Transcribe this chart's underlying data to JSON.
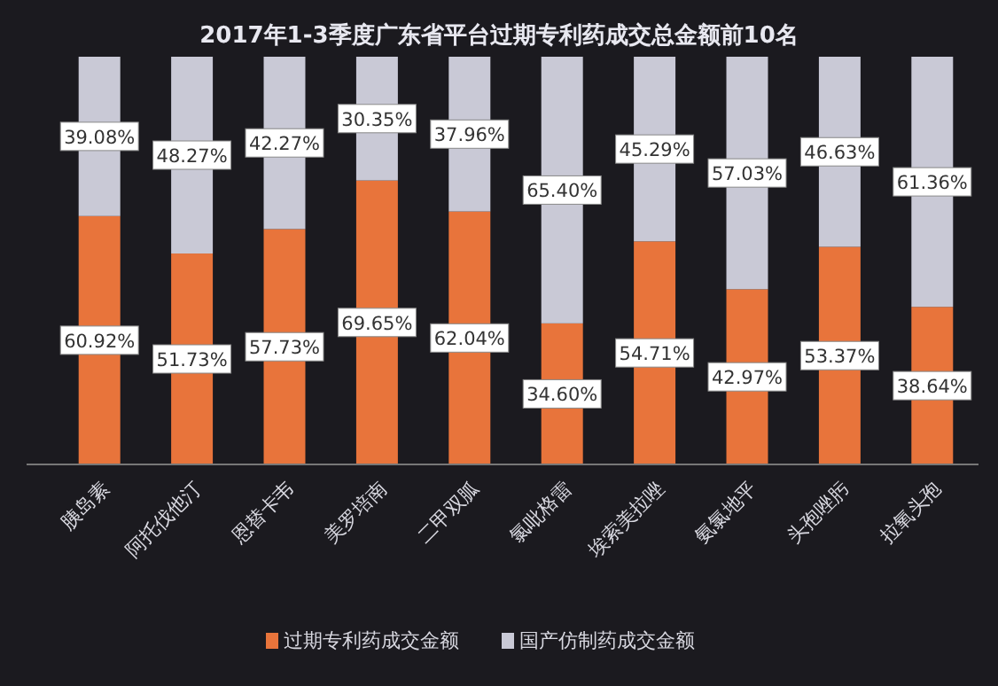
{
  "chart_data": {
    "type": "bar",
    "stacked": true,
    "title": "2017年1-3季度广东省平台过期专利药成交总金额前10名",
    "categories": [
      "胰岛素",
      "阿托伐他汀",
      "恩替卡韦",
      "美罗培南",
      "二甲双胍",
      "氯吡格雷",
      "埃索美拉唑",
      "氨氯地平",
      "头孢唑肟",
      "拉氧头孢"
    ],
    "series": [
      {
        "name": "过期专利药成交金额",
        "color": "#e8743b",
        "values": [
          60.92,
          51.73,
          57.73,
          69.65,
          62.04,
          34.6,
          54.71,
          42.97,
          53.37,
          38.64
        ],
        "value_labels": [
          "60.92%",
          "51.73%",
          "57.73%",
          "69.65%",
          "62.04%",
          "34.60%",
          "54.71%",
          "42.97%",
          "53.37%",
          "38.64%"
        ]
      },
      {
        "name": "国产仿制药成交金额",
        "color": "#c9c9d6",
        "values": [
          39.08,
          48.27,
          42.27,
          30.35,
          37.96,
          65.4,
          45.29,
          57.03,
          46.63,
          61.36
        ],
        "value_labels": [
          "39.08%",
          "48.27%",
          "42.27%",
          "30.35%",
          "37.96%",
          "65.40%",
          "45.29%",
          "57.03%",
          "46.63%",
          "61.36%"
        ]
      }
    ],
    "legend": "bottom"
  }
}
